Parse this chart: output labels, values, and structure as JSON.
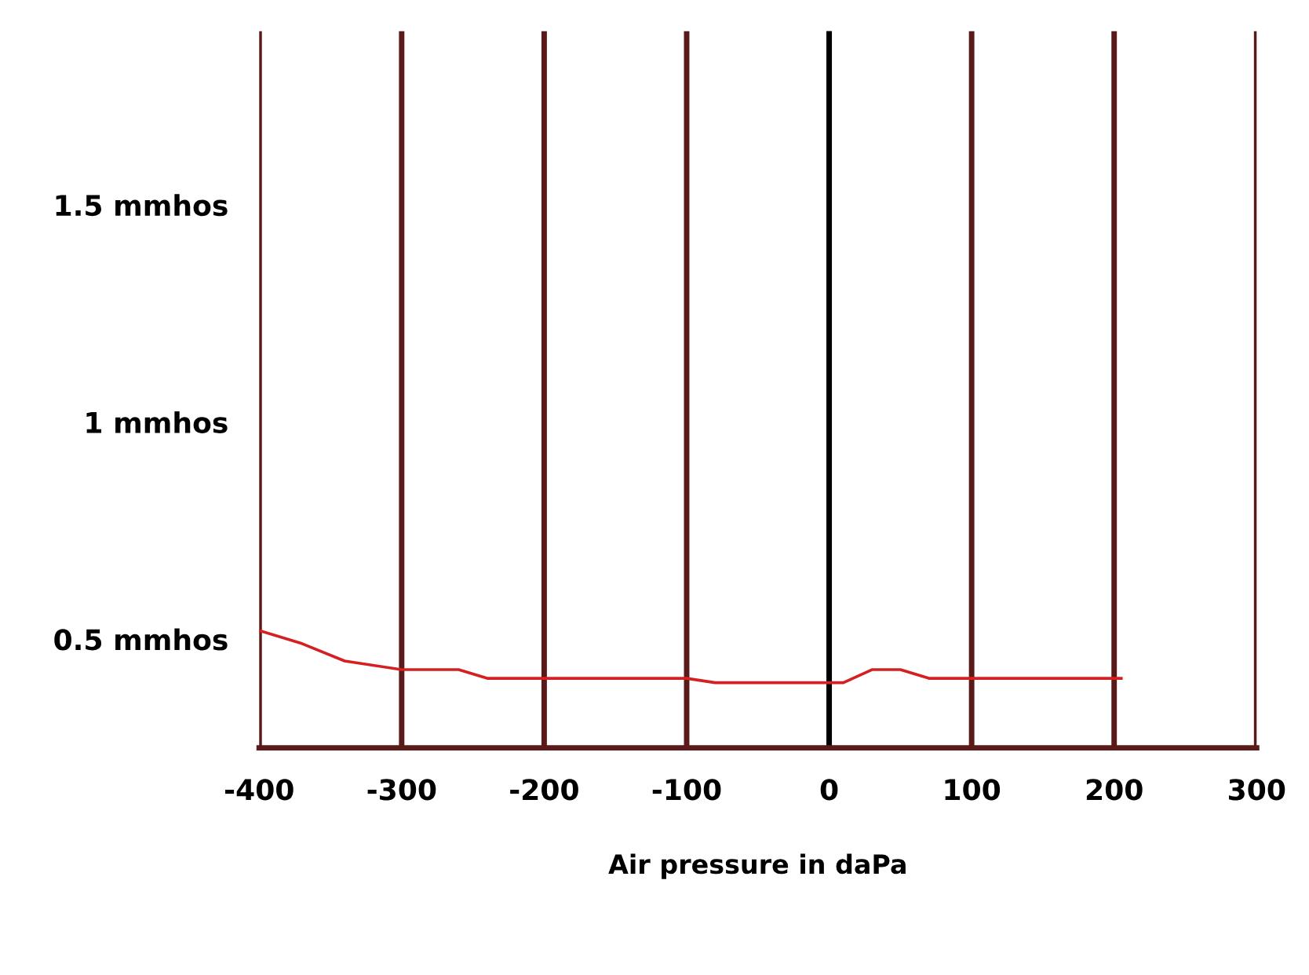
{
  "chart_data": {
    "type": "line",
    "xlabel": "Air pressure in daPa",
    "xlim": [
      -400,
      300
    ],
    "xticks": [
      -400,
      -300,
      -200,
      -100,
      0,
      100,
      200,
      300
    ],
    "ylim": [
      0.25,
      1.9
    ],
    "yticks": [
      {
        "value": 0.5,
        "label": "0.5 mmhos"
      },
      {
        "value": 1,
        "label": "1 mmhos"
      },
      {
        "value": 1.5,
        "label": "1.5 mmhos"
      }
    ],
    "grid": "x",
    "line_style": "solid",
    "marker": "none",
    "ref_lines": [
      {
        "axis": "x",
        "value": 0,
        "color": "#000000"
      }
    ],
    "x": [
      -400,
      -370,
      -340,
      -300,
      -260,
      -240,
      -200,
      -100,
      -80,
      0,
      10,
      30,
      50,
      70,
      100,
      200,
      205
    ],
    "series": [
      {
        "color": "#d42020",
        "values": [
          0.52,
          0.49,
          0.45,
          0.43,
          0.43,
          0.41,
          0.41,
          0.41,
          0.4,
          0.4,
          0.4,
          0.43,
          0.43,
          0.41,
          0.41,
          0.41,
          0.41
        ]
      }
    ]
  }
}
